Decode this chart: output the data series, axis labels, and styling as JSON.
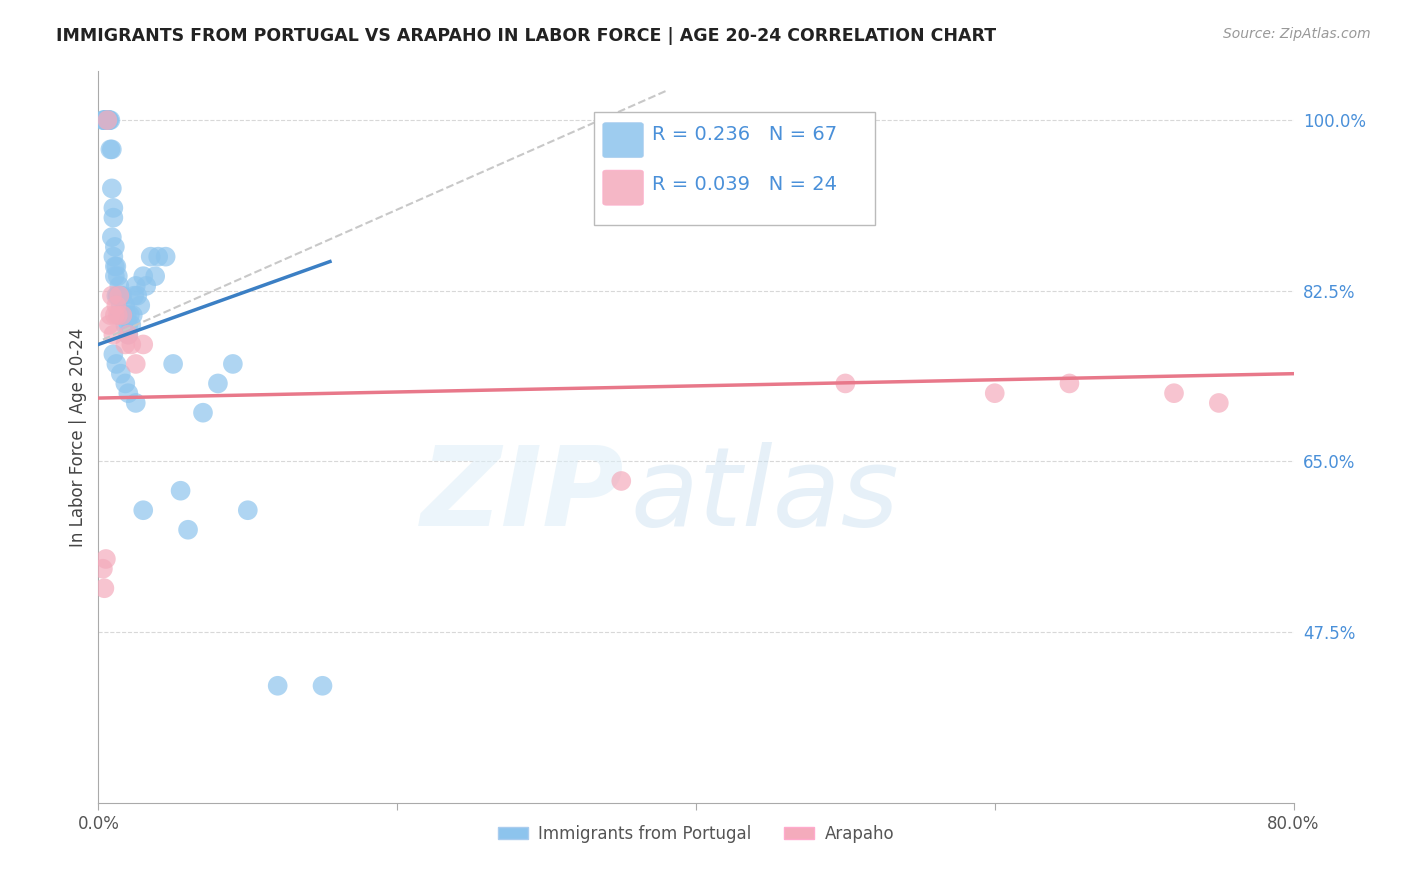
{
  "title": "IMMIGRANTS FROM PORTUGAL VS ARAPAHO IN LABOR FORCE | AGE 20-24 CORRELATION CHART",
  "source": "Source: ZipAtlas.com",
  "ylabel": "In Labor Force | Age 20-24",
  "xlim": [
    0.0,
    0.8
  ],
  "ylim": [
    0.3,
    1.05
  ],
  "yticks": [
    0.475,
    0.65,
    0.825,
    1.0
  ],
  "ytick_labels": [
    "47.5%",
    "65.0%",
    "82.5%",
    "100.0%"
  ],
  "xticks": [
    0.0,
    0.2,
    0.4,
    0.6,
    0.8
  ],
  "xtick_labels": [
    "0.0%",
    "",
    "",
    "",
    "80.0%"
  ],
  "blue_R": 0.236,
  "blue_N": 67,
  "pink_R": 0.039,
  "pink_N": 24,
  "blue_color": "#8DC4ED",
  "pink_color": "#F4ABBC",
  "blue_line_color": "#3B7FC4",
  "pink_line_color": "#E8788A",
  "dashed_line_color": "#C8C8C8",
  "grid_color": "#D8D8D8",
  "background_color": "#FFFFFF",
  "blue_points_x": [
    0.003,
    0.004,
    0.004,
    0.005,
    0.005,
    0.005,
    0.006,
    0.006,
    0.007,
    0.007,
    0.007,
    0.008,
    0.008,
    0.009,
    0.009,
    0.009,
    0.01,
    0.01,
    0.01,
    0.011,
    0.011,
    0.011,
    0.012,
    0.012,
    0.013,
    0.013,
    0.014,
    0.014,
    0.015,
    0.015,
    0.016,
    0.016,
    0.017,
    0.018,
    0.018,
    0.019,
    0.02,
    0.02,
    0.021,
    0.022,
    0.023,
    0.024,
    0.025,
    0.026,
    0.028,
    0.03,
    0.032,
    0.035,
    0.038,
    0.04,
    0.045,
    0.05,
    0.055,
    0.06,
    0.07,
    0.08,
    0.09,
    0.1,
    0.12,
    0.15,
    0.01,
    0.012,
    0.015,
    0.018,
    0.02,
    0.025,
    0.03
  ],
  "blue_points_y": [
    1.0,
    1.0,
    1.0,
    1.0,
    1.0,
    1.0,
    1.0,
    1.0,
    1.0,
    1.0,
    1.0,
    1.0,
    0.97,
    0.97,
    0.93,
    0.88,
    0.9,
    0.86,
    0.91,
    0.87,
    0.85,
    0.84,
    0.85,
    0.82,
    0.84,
    0.82,
    0.83,
    0.8,
    0.82,
    0.81,
    0.82,
    0.8,
    0.8,
    0.81,
    0.79,
    0.8,
    0.79,
    0.78,
    0.8,
    0.79,
    0.8,
    0.82,
    0.83,
    0.82,
    0.81,
    0.84,
    0.83,
    0.86,
    0.84,
    0.86,
    0.86,
    0.75,
    0.62,
    0.58,
    0.7,
    0.73,
    0.75,
    0.6,
    0.42,
    0.42,
    0.76,
    0.75,
    0.74,
    0.73,
    0.72,
    0.71,
    0.6
  ],
  "pink_points_x": [
    0.003,
    0.004,
    0.005,
    0.006,
    0.007,
    0.008,
    0.009,
    0.01,
    0.011,
    0.012,
    0.013,
    0.014,
    0.016,
    0.018,
    0.02,
    0.022,
    0.025,
    0.03,
    0.35,
    0.5,
    0.6,
    0.65,
    0.72,
    0.75
  ],
  "pink_points_y": [
    0.54,
    0.52,
    0.55,
    1.0,
    0.79,
    0.8,
    0.82,
    0.78,
    0.8,
    0.81,
    0.8,
    0.82,
    0.8,
    0.77,
    0.78,
    0.77,
    0.75,
    0.77,
    0.63,
    0.73,
    0.72,
    0.73,
    0.72,
    0.71
  ],
  "blue_line_x": [
    0.0,
    0.155
  ],
  "blue_line_y": [
    0.77,
    0.855
  ],
  "pink_line_x": [
    0.0,
    0.8
  ],
  "pink_line_y": [
    0.715,
    0.74
  ],
  "dash_line_x": [
    0.003,
    0.38
  ],
  "dash_line_y": [
    0.775,
    1.03
  ]
}
